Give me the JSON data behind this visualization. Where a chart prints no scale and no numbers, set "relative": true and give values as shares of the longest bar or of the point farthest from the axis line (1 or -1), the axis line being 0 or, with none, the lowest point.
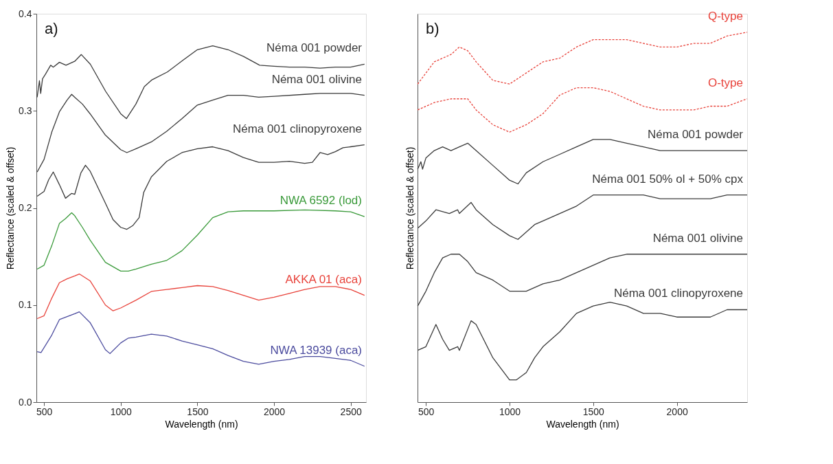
{
  "chart_data": [
    {
      "type": "line",
      "xlabel": "Wavelength (nm)",
      "ylabel": "Reflectance (scaled & offset)",
      "annotations": [
        "a)"
      ],
      "xlim": [
        450,
        2600
      ],
      "ylim": [
        0.0,
        0.4
      ],
      "xticks": [
        500,
        1000,
        1500,
        2000,
        2500
      ],
      "yticks": [
        {
          "value": 0.0,
          "label": "0.0"
        },
        0.1,
        0.2,
        0.3,
        0.4
      ],
      "grid": false,
      "legend": false,
      "series": [
        {
          "name": "Néma 001 powder",
          "color": "#3a3a3a",
          "x": [
            455,
            470,
            478,
            490,
            510,
            543,
            560,
            600,
            643,
            700,
            743,
            802,
            902,
            1000,
            1037,
            1099,
            1154,
            1204,
            1304,
            1405,
            1500,
            1600,
            1700,
            1801,
            1906,
            2000,
            2100,
            2200,
            2300,
            2400,
            2500,
            2590
          ],
          "values": [
            0.314,
            0.331,
            0.318,
            0.333,
            0.338,
            0.347,
            0.345,
            0.35,
            0.347,
            0.351,
            0.358,
            0.348,
            0.32,
            0.297,
            0.292,
            0.307,
            0.325,
            0.332,
            0.34,
            0.352,
            0.363,
            0.367,
            0.363,
            0.356,
            0.347,
            0.346,
            0.345,
            0.345,
            0.344,
            0.345,
            0.345,
            0.348
          ]
        },
        {
          "name": "Néma 001 olivine",
          "color": "#3a3a3a",
          "x": [
            455,
            500,
            550,
            600,
            650,
            680,
            700,
            750,
            800,
            900,
            1000,
            1040,
            1100,
            1200,
            1300,
            1400,
            1500,
            1600,
            1700,
            1800,
            1900,
            2000,
            2200,
            2300,
            2400,
            2500,
            2590
          ],
          "values": [
            0.237,
            0.25,
            0.278,
            0.299,
            0.311,
            0.317,
            0.314,
            0.307,
            0.297,
            0.275,
            0.26,
            0.257,
            0.261,
            0.268,
            0.279,
            0.292,
            0.306,
            0.311,
            0.316,
            0.316,
            0.314,
            0.315,
            0.317,
            0.318,
            0.318,
            0.318,
            0.316
          ]
        },
        {
          "name": "Néma 001 clinopyroxene",
          "color": "#3a3a3a",
          "x": [
            455,
            500,
            530,
            560,
            600,
            640,
            680,
            700,
            740,
            770,
            800,
            900,
            950,
            1000,
            1040,
            1080,
            1120,
            1150,
            1200,
            1300,
            1400,
            1500,
            1600,
            1700,
            1800,
            1900,
            2000,
            2100,
            2200,
            2250,
            2300,
            2350,
            2400,
            2450,
            2500,
            2590
          ],
          "values": [
            0.212,
            0.217,
            0.229,
            0.237,
            0.224,
            0.21,
            0.215,
            0.214,
            0.236,
            0.244,
            0.238,
            0.205,
            0.188,
            0.18,
            0.178,
            0.182,
            0.19,
            0.216,
            0.232,
            0.248,
            0.257,
            0.261,
            0.263,
            0.259,
            0.252,
            0.247,
            0.247,
            0.248,
            0.246,
            0.247,
            0.257,
            0.255,
            0.258,
            0.262,
            0.263,
            0.265
          ]
        },
        {
          "name": "NWA 6592 (lod)",
          "color": "#3a9a3a",
          "x": [
            455,
            500,
            550,
            600,
            640,
            680,
            700,
            750,
            800,
            900,
            1000,
            1050,
            1100,
            1200,
            1300,
            1400,
            1500,
            1600,
            1700,
            1800,
            2000,
            2200,
            2400,
            2500,
            2590
          ],
          "values": [
            0.137,
            0.141,
            0.161,
            0.184,
            0.189,
            0.195,
            0.192,
            0.18,
            0.167,
            0.144,
            0.135,
            0.135,
            0.137,
            0.142,
            0.146,
            0.156,
            0.172,
            0.19,
            0.196,
            0.197,
            0.197,
            0.198,
            0.197,
            0.196,
            0.191
          ]
        },
        {
          "name": "AKKA 01 (aca)",
          "color": "#e8423a",
          "x": [
            455,
            500,
            550,
            600,
            650,
            700,
            730,
            800,
            900,
            950,
            1000,
            1100,
            1200,
            1300,
            1400,
            1500,
            1600,
            1700,
            1800,
            1900,
            2000,
            2100,
            2200,
            2300,
            2400,
            2500,
            2590
          ],
          "values": [
            0.086,
            0.089,
            0.107,
            0.123,
            0.127,
            0.13,
            0.132,
            0.125,
            0.1,
            0.094,
            0.097,
            0.105,
            0.114,
            0.116,
            0.118,
            0.12,
            0.119,
            0.115,
            0.11,
            0.105,
            0.108,
            0.112,
            0.116,
            0.119,
            0.119,
            0.116,
            0.11
          ]
        },
        {
          "name": "NWA 13939 (aca)",
          "color": "#4b4b9e",
          "x": [
            455,
            480,
            550,
            600,
            650,
            700,
            730,
            800,
            900,
            930,
            1000,
            1050,
            1100,
            1200,
            1300,
            1400,
            1500,
            1600,
            1700,
            1800,
            1900,
            2000,
            2100,
            2200,
            2300,
            2400,
            2500,
            2590
          ],
          "values": [
            0.052,
            0.051,
            0.069,
            0.085,
            0.088,
            0.091,
            0.093,
            0.082,
            0.054,
            0.05,
            0.061,
            0.066,
            0.067,
            0.07,
            0.068,
            0.063,
            0.059,
            0.055,
            0.048,
            0.042,
            0.039,
            0.042,
            0.044,
            0.047,
            0.047,
            0.045,
            0.043,
            0.037
          ]
        }
      ]
    },
    {
      "type": "line",
      "relative": true,
      "xlabel": "Wavelength (nm)",
      "ylabel": "Reflectance (scaled & offset)",
      "annotations": [
        "b)"
      ],
      "xlim": [
        450,
        2420
      ],
      "xticks": [
        500,
        1000,
        1500,
        2000
      ],
      "tick_labels": "x",
      "grid": false,
      "legend": false,
      "series": [
        {
          "name": "Q-type",
          "color": "#e8423a",
          "line_style": "dotted",
          "x": [
            451,
            550,
            650,
            700,
            750,
            800,
            900,
            1000,
            1100,
            1200,
            1300,
            1400,
            1500,
            1600,
            1700,
            1800,
            1900,
            2000,
            2100,
            2200,
            2300,
            2420
          ],
          "values": [
            0.86,
            0.92,
            0.94,
            0.96,
            0.95,
            0.92,
            0.87,
            0.86,
            0.89,
            0.92,
            0.93,
            0.96,
            0.98,
            0.98,
            0.98,
            0.97,
            0.96,
            0.96,
            0.97,
            0.97,
            0.99,
            1.0
          ]
        },
        {
          "name": "O-type",
          "color": "#e8423a",
          "line_style": "dotted",
          "x": [
            451,
            550,
            650,
            700,
            750,
            800,
            900,
            1000,
            1100,
            1200,
            1300,
            1400,
            1500,
            1600,
            1700,
            1800,
            1900,
            2000,
            2100,
            2200,
            2300,
            2420
          ],
          "values": [
            0.79,
            0.81,
            0.82,
            0.82,
            0.82,
            0.79,
            0.75,
            0.73,
            0.75,
            0.78,
            0.83,
            0.85,
            0.85,
            0.84,
            0.82,
            0.8,
            0.79,
            0.79,
            0.79,
            0.8,
            0.8,
            0.82
          ]
        },
        {
          "name": "Néma 001 powder",
          "color": "#3a3a3a",
          "x": [
            451,
            470,
            480,
            500,
            550,
            600,
            650,
            700,
            750,
            800,
            900,
            1000,
            1050,
            1100,
            1200,
            1300,
            1400,
            1500,
            1600,
            1700,
            1800,
            1900,
            2000,
            2200,
            2420
          ],
          "values": [
            0.63,
            0.65,
            0.63,
            0.66,
            0.68,
            0.69,
            0.68,
            0.69,
            0.7,
            0.68,
            0.64,
            0.6,
            0.59,
            0.62,
            0.65,
            0.67,
            0.69,
            0.71,
            0.71,
            0.7,
            0.69,
            0.68,
            0.68,
            0.68,
            0.68
          ]
        },
        {
          "name": "Néma 001 50% ol + 50% cpx",
          "color": "#3a3a3a",
          "x": [
            451,
            500,
            560,
            640,
            690,
            700,
            770,
            800,
            900,
            1000,
            1050,
            1100,
            1150,
            1200,
            1300,
            1400,
            1500,
            1600,
            1700,
            1800,
            1900,
            2000,
            2100,
            2200,
            2300,
            2420
          ],
          "values": [
            0.47,
            0.49,
            0.52,
            0.51,
            0.52,
            0.51,
            0.54,
            0.52,
            0.48,
            0.45,
            0.44,
            0.46,
            0.48,
            0.49,
            0.51,
            0.53,
            0.56,
            0.56,
            0.56,
            0.56,
            0.55,
            0.55,
            0.55,
            0.55,
            0.56,
            0.56
          ]
        },
        {
          "name": "Néma 001 olivine",
          "color": "#3a3a3a",
          "x": [
            451,
            500,
            550,
            600,
            650,
            680,
            700,
            750,
            800,
            900,
            1000,
            1050,
            1100,
            1200,
            1300,
            1400,
            1500,
            1600,
            1700,
            1800,
            1900,
            2000,
            2200,
            2300,
            2420
          ],
          "values": [
            0.26,
            0.3,
            0.35,
            0.39,
            0.4,
            0.4,
            0.4,
            0.38,
            0.35,
            0.33,
            0.3,
            0.3,
            0.3,
            0.32,
            0.33,
            0.35,
            0.37,
            0.39,
            0.4,
            0.4,
            0.4,
            0.4,
            0.4,
            0.4,
            0.4
          ]
        },
        {
          "name": "Néma 001 clinopyroxene",
          "color": "#3a3a3a",
          "x": [
            451,
            500,
            560,
            600,
            640,
            690,
            700,
            770,
            800,
            900,
            1000,
            1040,
            1100,
            1150,
            1200,
            1300,
            1400,
            1500,
            1600,
            1700,
            1800,
            1900,
            2000,
            2100,
            2200,
            2300,
            2350,
            2420
          ],
          "values": [
            0.14,
            0.15,
            0.21,
            0.17,
            0.14,
            0.15,
            0.14,
            0.22,
            0.21,
            0.12,
            0.06,
            0.06,
            0.08,
            0.12,
            0.15,
            0.19,
            0.24,
            0.26,
            0.27,
            0.26,
            0.24,
            0.24,
            0.23,
            0.23,
            0.23,
            0.25,
            0.25,
            0.25
          ]
        }
      ]
    }
  ]
}
